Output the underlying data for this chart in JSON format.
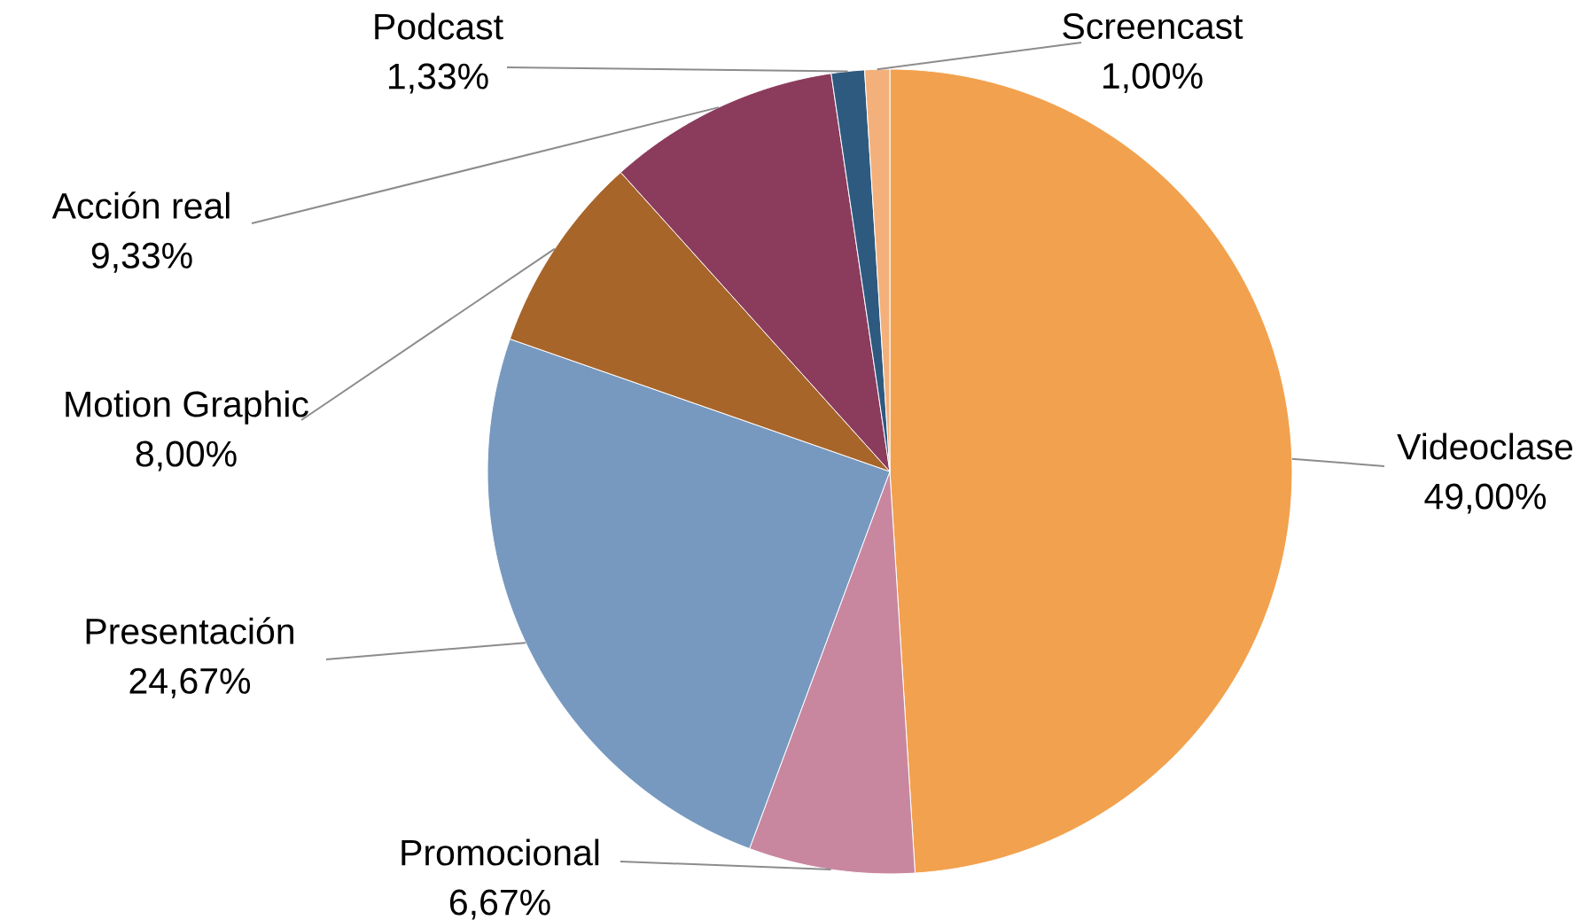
{
  "chart_data": {
    "type": "pie",
    "categories": [
      "Videoclase",
      "Promocional",
      "Presentación",
      "Motion Graphic",
      "Acción real",
      "Podcast",
      "Screencast"
    ],
    "values": [
      49.0,
      6.67,
      24.67,
      8.0,
      9.33,
      1.33,
      1.0
    ],
    "colors": [
      "#f2a14e",
      "#c8879f",
      "#7899bf",
      "#a8652a",
      "#8b3c5d",
      "#2e5a80",
      "#f4b07a"
    ],
    "value_labels": [
      "49,00%",
      "6,67%",
      "24,67%",
      "8,00%",
      "9,33%",
      "1,33%",
      "1,00%"
    ]
  }
}
